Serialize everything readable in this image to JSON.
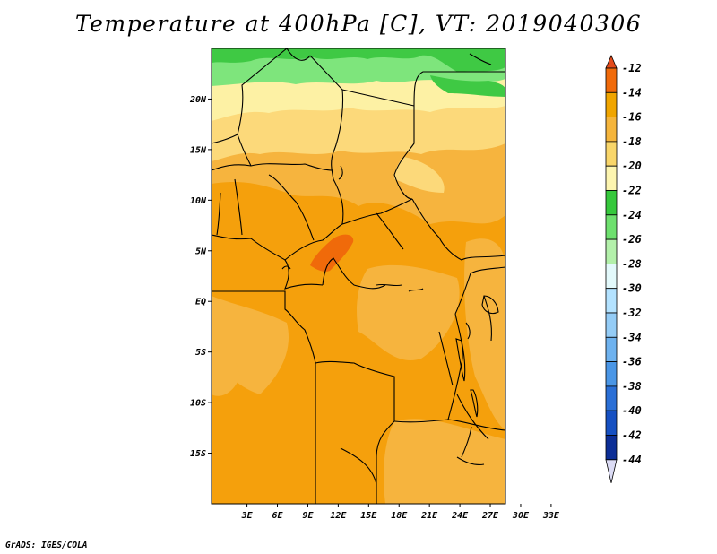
{
  "title": "Temperature at 400hPa [C], VT: 2019040306",
  "credit": "GrADS: IGES/COLA",
  "map": {
    "variable": "Temperature",
    "level": "400hPa",
    "units": "C",
    "valid_time": "2019040306",
    "lat_range": [
      -20,
      25
    ],
    "lon_range": [
      -0.5,
      28.5
    ],
    "lat_labels": [
      "20N",
      "15N",
      "10N",
      "5N",
      "EQ",
      "5S",
      "10S",
      "15S"
    ],
    "lat_values": [
      20,
      15,
      10,
      5,
      0,
      -5,
      -10,
      -15
    ],
    "lon_labels": [
      "3E",
      "6E",
      "9E",
      "12E",
      "15E",
      "18E",
      "21E",
      "24E",
      "27E",
      "30E",
      "33E"
    ],
    "lon_values": [
      3,
      6,
      9,
      12,
      15,
      18,
      21,
      24,
      27,
      30,
      33
    ]
  },
  "colorbar": {
    "levels": [
      "-12",
      "-14",
      "-16",
      "-18",
      "-20",
      "-22",
      "-24",
      "-26",
      "-28",
      "-30",
      "-32",
      "-34",
      "-36",
      "-38",
      "-40",
      "-42",
      "-44"
    ],
    "colors": [
      "#e34a1b",
      "#f06a0a",
      "#f0a500",
      "#f5b53c",
      "#f9d66a",
      "#fdf5b0",
      "#36c83c",
      "#6ee06e",
      "#b3f0aa",
      "#e3f9fb",
      "#b3e2ff",
      "#94ccf6",
      "#6eb2ef",
      "#4a96e6",
      "#2a6fd6",
      "#1650c2",
      "#0c2e96",
      "#0b1a6c"
    ],
    "over_color": "#e34a1b",
    "under_color": "#dcdcf5"
  },
  "colors": {
    "orange": "#f5a00c",
    "light_orange": "#f6b43e",
    "pale_yellow": "#fcd97a",
    "cream": "#fdf1a4",
    "green": "#3fc944",
    "light_green": "#7ee57c",
    "red_orange": "#f06a0a"
  }
}
